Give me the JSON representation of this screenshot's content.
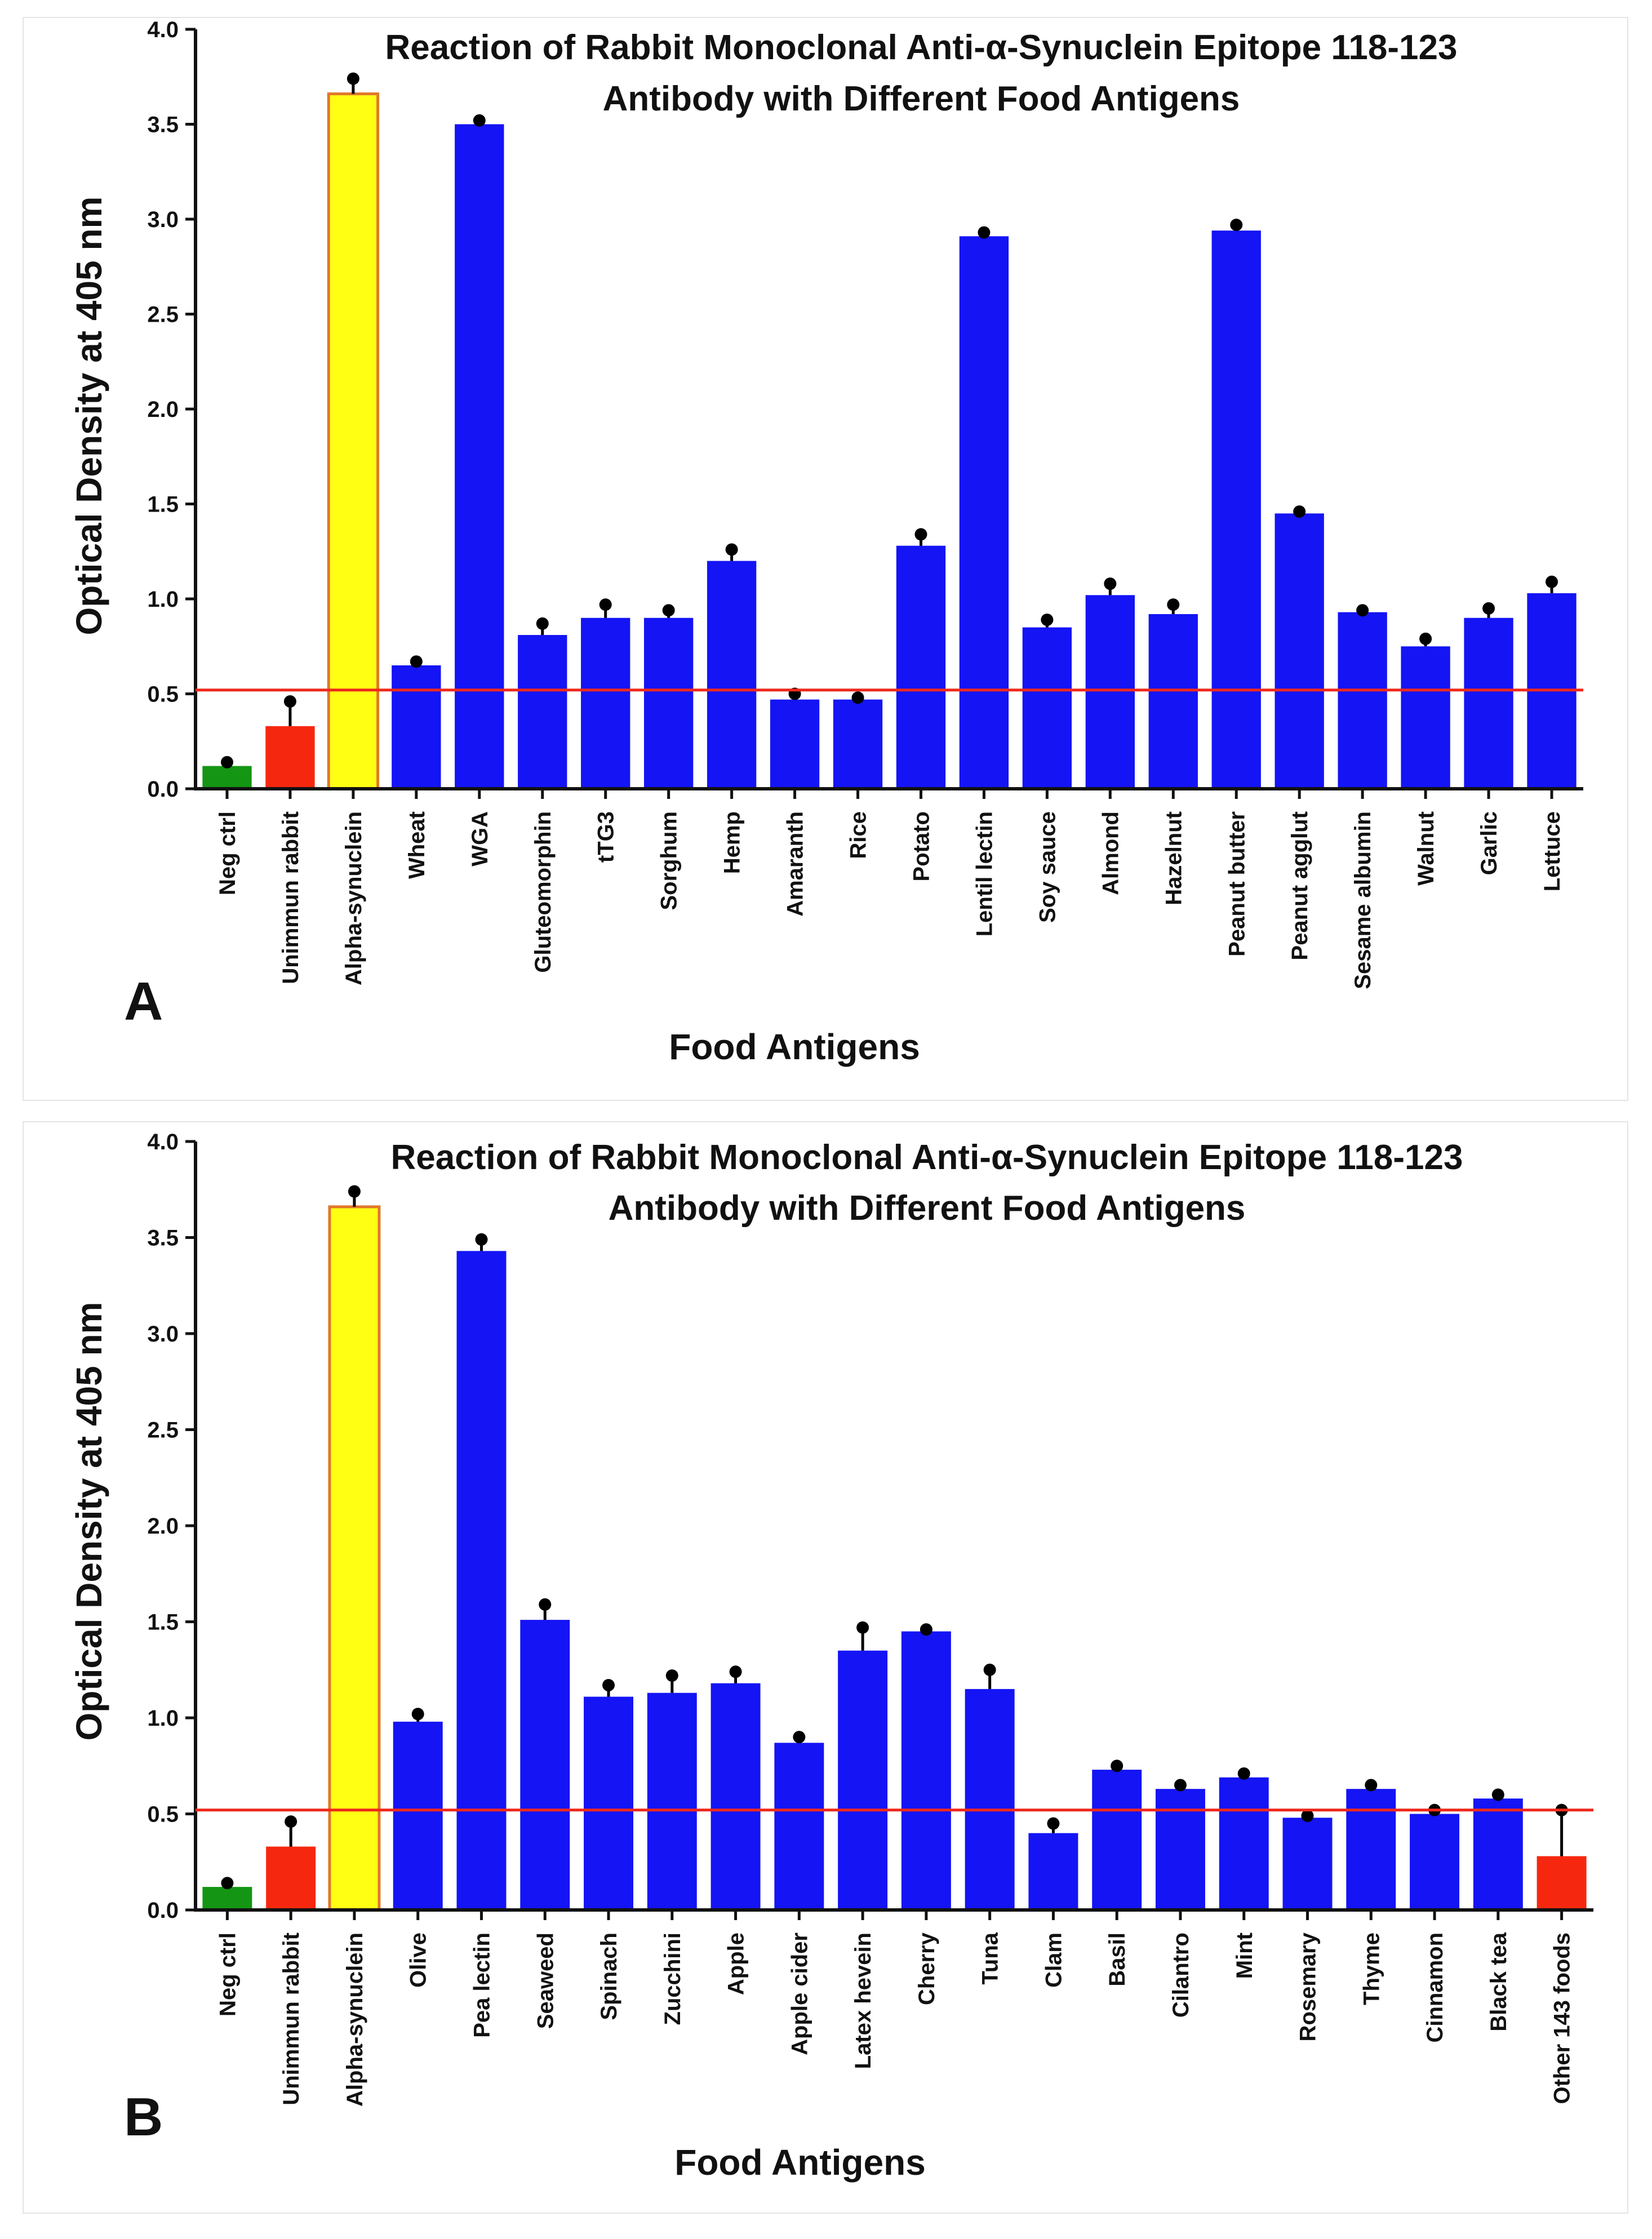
{
  "chart_data": [
    {
      "panel": "A",
      "type": "bar",
      "title_lines": [
        "Reaction of Rabbit Monoclonal Anti-α-Synuclein Epitope 118-123",
        "Antibody with Different Food Antigens"
      ],
      "xlabel": "Food Antigens",
      "ylabel": "Optical Density at 405 nm",
      "ylim": [
        0,
        4.0
      ],
      "yticks": [
        "0.0",
        "0.5",
        "1.0",
        "1.5",
        "2.0",
        "2.5",
        "3.0",
        "3.5",
        "4.0"
      ],
      "cutoff": 0.52,
      "categories": [
        "Neg ctrl",
        "Unimmun rabbit",
        "Alpha-synuclein",
        "Wheat",
        "WGA",
        "Gluteomorphin",
        "tTG3",
        "Sorghum",
        "Hemp",
        "Amaranth",
        "Rice",
        "Potato",
        "Lentil lectin",
        "Soy sauce",
        "Almond",
        "Hazelnut",
        "Peanut butter",
        "Peanut agglut",
        "Sesame albumin",
        "Walnut",
        "Garlic",
        "Lettuce"
      ],
      "values": [
        0.12,
        0.33,
        3.66,
        0.65,
        3.5,
        0.81,
        0.9,
        0.9,
        1.2,
        0.47,
        0.47,
        1.28,
        2.91,
        0.85,
        1.02,
        0.92,
        2.94,
        1.45,
        0.93,
        0.75,
        0.9,
        1.03
      ],
      "errors": [
        0.02,
        0.13,
        0.08,
        0.02,
        0.02,
        0.06,
        0.07,
        0.04,
        0.06,
        0.03,
        0.01,
        0.06,
        0.02,
        0.04,
        0.06,
        0.05,
        0.03,
        0.01,
        0.01,
        0.04,
        0.05,
        0.06
      ],
      "colors": [
        "#149614",
        "#f5280f",
        "#ffff14",
        "#1414f5",
        "#1414f5",
        "#1414f5",
        "#1414f5",
        "#1414f5",
        "#1414f5",
        "#1414f5",
        "#1414f5",
        "#1414f5",
        "#1414f5",
        "#1414f5",
        "#1414f5",
        "#1414f5",
        "#1414f5",
        "#1414f5",
        "#1414f5",
        "#1414f5",
        "#1414f5",
        "#1414f5"
      ]
    },
    {
      "panel": "B",
      "type": "bar",
      "title_lines": [
        "Reaction of Rabbit Monoclonal Anti-α-Synuclein Epitope 118-123",
        "Antibody with Different Food Antigens"
      ],
      "xlabel": "Food Antigens",
      "ylabel": "Optical Density at 405 nm",
      "ylim": [
        0,
        4.0
      ],
      "yticks": [
        "0.0",
        "0.5",
        "1.0",
        "1.5",
        "2.0",
        "2.5",
        "3.0",
        "3.5",
        "4.0"
      ],
      "cutoff": 0.52,
      "categories": [
        "Neg ctrl",
        "Unimmun rabbit",
        "Alpha-synuclein",
        "Olive",
        "Pea lectin",
        "Seaweed",
        "Spinach",
        "Zucchini",
        "Apple",
        "Apple cider",
        "Latex hevein",
        "Cherry",
        "Tuna",
        "Clam",
        "Basil",
        "Cilantro",
        "Mint",
        "Rosemary",
        "Thyme",
        "Cinnamon",
        "Black tea",
        "Other 143 foods"
      ],
      "values": [
        0.12,
        0.33,
        3.66,
        0.98,
        3.43,
        1.51,
        1.11,
        1.13,
        1.18,
        0.87,
        1.35,
        1.45,
        1.15,
        0.4,
        0.73,
        0.63,
        0.69,
        0.48,
        0.63,
        0.5,
        0.58,
        0.28
      ],
      "errors": [
        0.02,
        0.13,
        0.08,
        0.04,
        0.06,
        0.08,
        0.06,
        0.09,
        0.06,
        0.03,
        0.12,
        0.01,
        0.1,
        0.05,
        0.02,
        0.02,
        0.02,
        0.01,
        0.02,
        0.02,
        0.02,
        0.24
      ],
      "colors": [
        "#149614",
        "#f5280f",
        "#ffff14",
        "#1414f5",
        "#1414f5",
        "#1414f5",
        "#1414f5",
        "#1414f5",
        "#1414f5",
        "#1414f5",
        "#1414f5",
        "#1414f5",
        "#1414f5",
        "#1414f5",
        "#1414f5",
        "#1414f5",
        "#1414f5",
        "#1414f5",
        "#1414f5",
        "#1414f5",
        "#1414f5",
        "#f5280f"
      ]
    }
  ],
  "style": {
    "axis_color": "#111111",
    "cutoff_color": "#ee2a1c",
    "highlight_border_color": "#e0782a",
    "error_bar_color": "#000000"
  }
}
